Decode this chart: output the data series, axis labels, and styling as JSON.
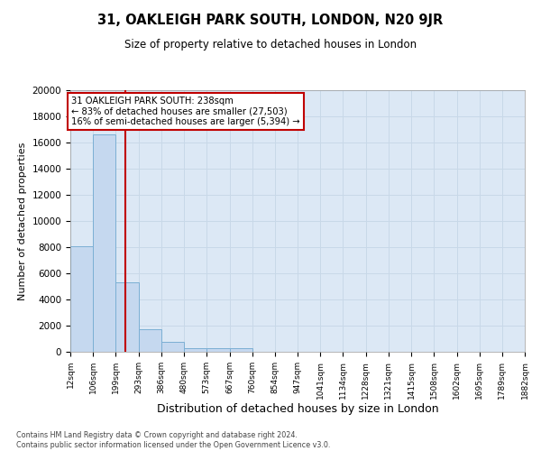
{
  "title": "31, OAKLEIGH PARK SOUTH, LONDON, N20 9JR",
  "subtitle": "Size of property relative to detached houses in London",
  "xlabel": "Distribution of detached houses by size in London",
  "ylabel": "Number of detached properties",
  "footer_line1": "Contains HM Land Registry data © Crown copyright and database right 2024.",
  "footer_line2": "Contains public sector information licensed under the Open Government Licence v3.0.",
  "annotation_title": "31 OAKLEIGH PARK SOUTH: 238sqm",
  "annotation_line2": "← 83% of detached houses are smaller (27,503)",
  "annotation_line3": "16% of semi-detached houses are larger (5,394) →",
  "property_size": 238,
  "bins": [
    12,
    106,
    199,
    293,
    386,
    480,
    573,
    667,
    760,
    854,
    947,
    1041,
    1134,
    1228,
    1321,
    1415,
    1508,
    1602,
    1695,
    1789,
    1882
  ],
  "bin_labels": [
    "12sqm",
    "106sqm",
    "199sqm",
    "293sqm",
    "386sqm",
    "480sqm",
    "573sqm",
    "667sqm",
    "760sqm",
    "854sqm",
    "947sqm",
    "1041sqm",
    "1134sqm",
    "1228sqm",
    "1321sqm",
    "1415sqm",
    "1508sqm",
    "1602sqm",
    "1695sqm",
    "1789sqm",
    "1882sqm"
  ],
  "bar_heights": [
    8100,
    16600,
    5300,
    1750,
    750,
    300,
    300,
    300,
    0,
    0,
    0,
    0,
    0,
    0,
    0,
    0,
    0,
    0,
    0,
    0
  ],
  "bar_color": "#c5d8ef",
  "bar_edge_color": "#7bafd4",
  "line_color": "#c00000",
  "annotation_box_color": "#c00000",
  "grid_color": "#c8d8e8",
  "bg_color": "#dce8f5",
  "ylim": [
    0,
    20000
  ],
  "yticks": [
    0,
    2000,
    4000,
    6000,
    8000,
    10000,
    12000,
    14000,
    16000,
    18000,
    20000
  ]
}
